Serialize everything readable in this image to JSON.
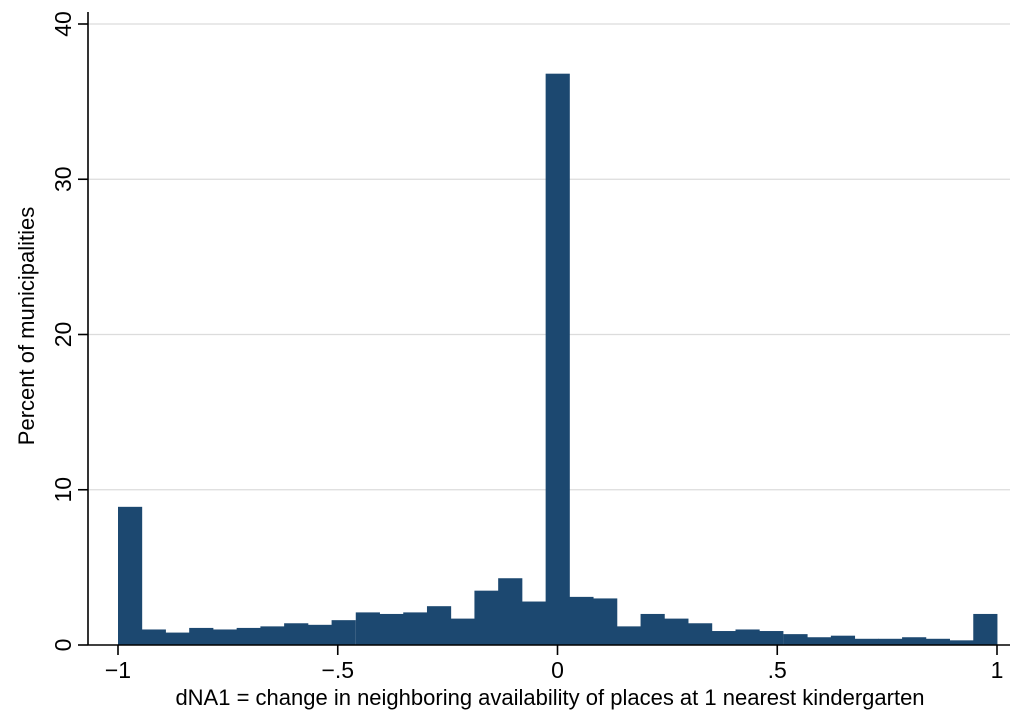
{
  "chart_data": {
    "type": "bar",
    "subtype": "histogram",
    "title": "",
    "xlabel": "dNA1 = change in neighboring availability of places at 1 nearest kindergarten",
    "ylabel": "Percent of municipalities",
    "xlim": [
      -1,
      1
    ],
    "ylim": [
      0,
      40
    ],
    "bin_width": 0.0541,
    "x_ticks": [
      -1,
      -0.5,
      0,
      0.5,
      1
    ],
    "x_tick_labels": [
      "−1",
      "−.5",
      "0",
      ".5",
      "1"
    ],
    "y_ticks": [
      0,
      10,
      20,
      30,
      40
    ],
    "y_tick_labels": [
      "0",
      "10",
      "20",
      "30",
      "40"
    ],
    "grid": "horizontal",
    "bar_color": "#1c4870",
    "series": [
      {
        "bin_starts": [
          -1.0,
          -0.946,
          -0.892,
          -0.838,
          -0.784,
          -0.73,
          -0.676,
          -0.622,
          -0.568,
          -0.514,
          -0.459,
          -0.405,
          -0.351,
          -0.297,
          -0.243,
          -0.189,
          -0.135,
          -0.081,
          -0.027,
          0.027,
          0.081,
          0.135,
          0.189,
          0.243,
          0.297,
          0.351,
          0.405,
          0.459,
          0.514,
          0.568,
          0.622,
          0.676,
          0.73,
          0.784,
          0.838,
          0.892,
          0.946
        ],
        "values": [
          8.9,
          1.0,
          0.8,
          1.1,
          1.0,
          1.1,
          1.2,
          1.4,
          1.3,
          1.6,
          2.1,
          2.0,
          2.1,
          2.5,
          1.7,
          3.5,
          4.3,
          2.8,
          36.8,
          3.1,
          3.0,
          1.2,
          2.0,
          1.7,
          1.4,
          0.9,
          1.0,
          0.9,
          0.7,
          0.5,
          0.6,
          0.4,
          0.4,
          0.5,
          0.4,
          0.3,
          2.0
        ]
      }
    ]
  }
}
